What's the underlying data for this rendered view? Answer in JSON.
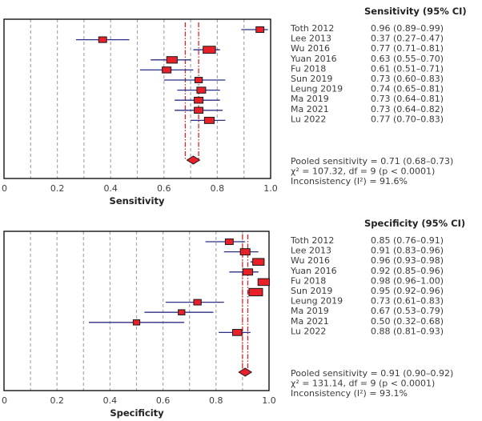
{
  "chart_data": [
    {
      "type": "forest",
      "title": "Sensitivity (95% CI)",
      "xlabel": "Sensitivity",
      "xlim": [
        0,
        1.0
      ],
      "xticks": [
        "0",
        "0.2",
        "0.4",
        "0.6",
        "0.8",
        "1.0"
      ],
      "grid": "vertical dashed every 0.1",
      "studies": [
        {
          "name": "Toth 2012",
          "est": 0.96,
          "lo": 0.89,
          "hi": 0.99,
          "label": "0.96 (0.89–0.99)",
          "weight": 0.9
        },
        {
          "name": "Lee 2013",
          "est": 0.37,
          "lo": 0.27,
          "hi": 0.47,
          "label": "0.37 (0.27–0.47)",
          "weight": 0.9
        },
        {
          "name": "Wu 2016",
          "est": 0.77,
          "lo": 0.71,
          "hi": 0.81,
          "label": "0.77 (0.71–0.81)",
          "weight": 1.4
        },
        {
          "name": "Yuan 2016",
          "est": 0.63,
          "lo": 0.55,
          "hi": 0.7,
          "label": "0.63 (0.55–0.70)",
          "weight": 1.2
        },
        {
          "name": "Fu 2018",
          "est": 0.61,
          "lo": 0.51,
          "hi": 0.71,
          "label": "0.61 (0.51–0.71)",
          "weight": 1.0
        },
        {
          "name": "Sun 2019",
          "est": 0.73,
          "lo": 0.6,
          "hi": 0.83,
          "label": "0.73 (0.60–0.83)",
          "weight": 0.85
        },
        {
          "name": "Leung 2019",
          "est": 0.74,
          "lo": 0.65,
          "hi": 0.81,
          "label": "0.74 (0.65–0.81)",
          "weight": 1.0
        },
        {
          "name": "Ma 2019",
          "est": 0.73,
          "lo": 0.64,
          "hi": 0.81,
          "label": "0.73 (0.64–0.81)",
          "weight": 1.0
        },
        {
          "name": "Ma 2021",
          "est": 0.73,
          "lo": 0.64,
          "hi": 0.82,
          "label": "0.73 (0.64–0.82)",
          "weight": 1.0
        },
        {
          "name": "Lu 2022",
          "est": 0.77,
          "lo": 0.7,
          "hi": 0.83,
          "label": "0.77 (0.70–0.83)",
          "weight": 1.1
        }
      ],
      "pooled": {
        "est": 0.71,
        "lo": 0.68,
        "hi": 0.73
      },
      "summary": [
        "Pooled sensitivity = 0.71 (0.68–0.73)",
        "χ² = 107.32, df = 9 (p < 0.0001)",
        "Inconsistency (I²) = 91.6%"
      ]
    },
    {
      "type": "forest",
      "title": "Specificity (95% CI)",
      "xlabel": "Specificity",
      "xlim": [
        0,
        1.0
      ],
      "xticks": [
        "0",
        "0.2",
        "0.4",
        "0.6",
        "0.8",
        "1.0"
      ],
      "grid": "vertical dashed every 0.1",
      "studies": [
        {
          "name": "Toth 2012",
          "est": 0.85,
          "lo": 0.76,
          "hi": 0.91,
          "label": "0.85 (0.76–0.91)",
          "weight": 0.9
        },
        {
          "name": "Lee 2013",
          "est": 0.91,
          "lo": 0.83,
          "hi": 0.96,
          "label": "0.91 (0.83–0.96)",
          "weight": 1.1
        },
        {
          "name": "Wu 2016",
          "est": 0.96,
          "lo": 0.93,
          "hi": 0.98,
          "label": "0.96 (0.93–0.98)",
          "weight": 1.3
        },
        {
          "name": "Yuan 2016",
          "est": 0.92,
          "lo": 0.85,
          "hi": 0.96,
          "label": "0.92 (0.85–0.96)",
          "weight": 1.1
        },
        {
          "name": "Fu 2018",
          "est": 0.98,
          "lo": 0.96,
          "hi": 1.0,
          "label": "0.98 (0.96–1.00)",
          "weight": 1.3
        },
        {
          "name": "Sun 2019",
          "est": 0.95,
          "lo": 0.92,
          "hi": 0.96,
          "label": "0.95 (0.92–0.96)",
          "weight": 1.55
        },
        {
          "name": "Leung 2019",
          "est": 0.73,
          "lo": 0.61,
          "hi": 0.83,
          "label": "0.73 (0.61–0.83)",
          "weight": 0.85
        },
        {
          "name": "Ma 2019",
          "est": 0.67,
          "lo": 0.53,
          "hi": 0.79,
          "label": "0.67 (0.53–0.79)",
          "weight": 0.75
        },
        {
          "name": "Ma 2021",
          "est": 0.5,
          "lo": 0.32,
          "hi": 0.68,
          "label": "0.50 (0.32–0.68)",
          "weight": 0.75
        },
        {
          "name": "Lu 2022",
          "est": 0.88,
          "lo": 0.81,
          "hi": 0.93,
          "label": "0.88 (0.81–0.93)",
          "weight": 1.05
        }
      ],
      "pooled": {
        "est": 0.91,
        "lo": 0.9,
        "hi": 0.92
      },
      "summary": [
        "Pooled sensitivity = 0.91 (0.90–0.92)",
        "χ² = 131.14, df = 9 (p < 0.0001)",
        "Inconsistency (I²) = 93.1%"
      ]
    }
  ],
  "colors": {
    "box_fill": "#e8202a",
    "box_stroke": "#1a1a1a",
    "ci_line": "#2b2f86",
    "pooled_line": "#d9262c",
    "grid": "#a8a8a8",
    "frame": "#000000",
    "text": "#3c3c3c"
  }
}
